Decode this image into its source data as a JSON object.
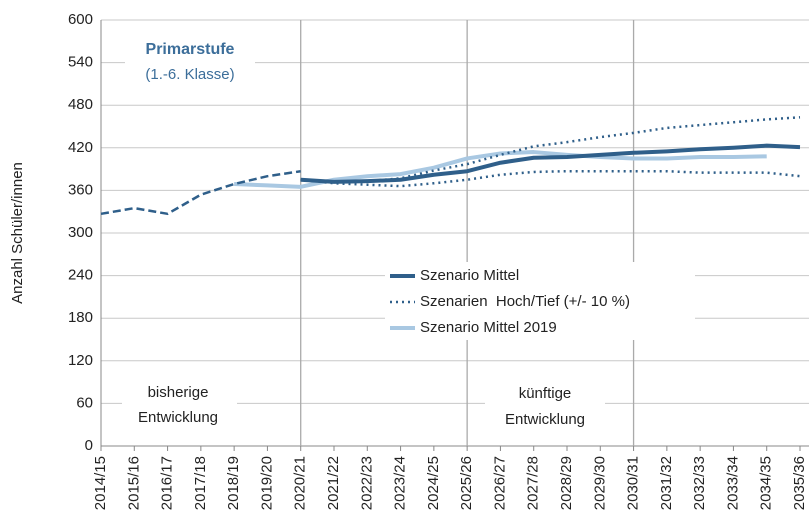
{
  "chart_data": {
    "type": "line",
    "y_label": "Anzahl Schüler/innen",
    "annotations": {
      "title": "Primarstufe",
      "subtitle": "(1.-6. Klasse)",
      "past": [
        "bisherige",
        "Entwicklung"
      ],
      "future": [
        "künftige",
        "Entwicklung"
      ]
    },
    "categories": [
      "2014/15",
      "2015/16",
      "2016/17",
      "2017/18",
      "2018/19",
      "2019/20",
      "2020/21",
      "2021/22",
      "2022/23",
      "2023/24",
      "2024/25",
      "2025/26",
      "2026/27",
      "2027/28",
      "2028/29",
      "2029/30",
      "2030/31",
      "2031/32",
      "2032/33",
      "2033/34",
      "2034/35",
      "2035/36"
    ],
    "ylim": [
      0,
      600
    ],
    "yticks": [
      0,
      60,
      120,
      180,
      240,
      300,
      360,
      420,
      480,
      540,
      600
    ],
    "grid": true,
    "vline_indices": [
      6,
      11,
      16
    ],
    "series": [
      {
        "color": "#2f5f8a",
        "style": "dashed",
        "values": [
          327,
          335,
          327,
          354,
          369,
          380,
          387,
          null,
          null,
          null,
          null,
          null,
          null,
          null,
          null,
          null,
          null,
          null,
          null,
          null,
          null,
          null
        ]
      },
      {
        "name": "Szenario Mittel",
        "color": "#2f5f8a",
        "style": "thick",
        "values": [
          null,
          null,
          null,
          null,
          null,
          null,
          375,
          372,
          373,
          375,
          382,
          387,
          399,
          406,
          407,
          410,
          413,
          415,
          418,
          420,
          423,
          421
        ]
      },
      {
        "name": "Szenarien  Hoch/Tief (+/- 10 %)",
        "color": "#2f5f8a",
        "style": "dotted",
        "values": [
          null,
          null,
          null,
          null,
          null,
          null,
          375,
          372,
          373,
          377,
          388,
          397,
          410,
          422,
          428,
          435,
          441,
          448,
          452,
          456,
          460,
          463
        ],
        "low_values": [
          null,
          null,
          null,
          null,
          null,
          null,
          375,
          370,
          368,
          366,
          370,
          375,
          382,
          386,
          387,
          387,
          387,
          387,
          385,
          385,
          385,
          380
        ]
      },
      {
        "name": "Szenario Mittel 2019",
        "color": "#a9c8e2",
        "style": "thick",
        "values": [
          null,
          null,
          null,
          null,
          369,
          367,
          365,
          375,
          380,
          383,
          392,
          405,
          412,
          414,
          410,
          407,
          405,
          405,
          407,
          407,
          408,
          null
        ]
      }
    ]
  }
}
